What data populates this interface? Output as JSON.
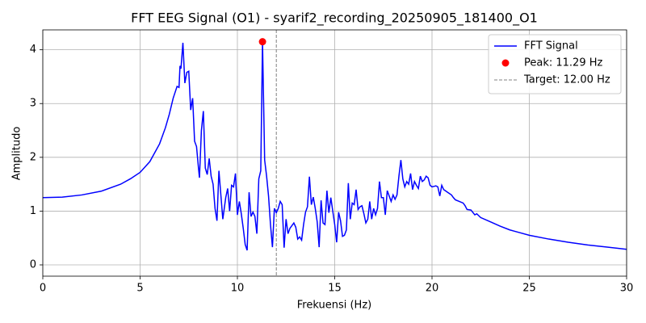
{
  "chart_data": {
    "type": "line",
    "title": "FFT EEG Signal (O1) - syarif2_recording_20250905_181400_O1",
    "x_label": "Frekuensi (Hz)",
    "y_label": "Amplitudo",
    "xlim": [
      0,
      30
    ],
    "ylim": [
      -0.21,
      4.37
    ],
    "xticks": [
      0,
      5,
      10,
      15,
      20,
      25,
      30
    ],
    "yticks": [
      0,
      1,
      2,
      3,
      4
    ],
    "grid": true,
    "legend": "upper right",
    "series": [
      {
        "name": "FFT Signal",
        "color": "#0000ff",
        "style": "line",
        "x": [
          0,
          1,
          2,
          3,
          4,
          4.5,
          5,
          5.5,
          6,
          6.3,
          6.5,
          6.7,
          6.9,
          7.0,
          7.05,
          7.1,
          7.2,
          7.3,
          7.4,
          7.5,
          7.6,
          7.7,
          7.8,
          7.9,
          8.0,
          8.05,
          8.15,
          8.25,
          8.35,
          8.45,
          8.55,
          8.65,
          8.75,
          8.85,
          8.95,
          9.05,
          9.15,
          9.25,
          9.4,
          9.5,
          9.6,
          9.7,
          9.8,
          9.9,
          10.0,
          10.1,
          10.2,
          10.3,
          10.4,
          10.5,
          10.6,
          10.7,
          10.8,
          10.9,
          11.0,
          11.1,
          11.2,
          11.29,
          11.4,
          11.5,
          11.6,
          11.7,
          11.8,
          11.9,
          12.0,
          12.1,
          12.2,
          12.3,
          12.4,
          12.5,
          12.6,
          12.7,
          12.8,
          12.9,
          13.0,
          13.1,
          13.2,
          13.3,
          13.4,
          13.5,
          13.6,
          13.7,
          13.8,
          13.9,
          14.0,
          14.1,
          14.2,
          14.3,
          14.4,
          14.5,
          14.6,
          14.7,
          14.8,
          14.9,
          15.0,
          15.1,
          15.2,
          15.3,
          15.4,
          15.5,
          15.6,
          15.7,
          15.8,
          15.9,
          16.0,
          16.1,
          16.2,
          16.3,
          16.4,
          16.5,
          16.6,
          16.7,
          16.8,
          16.9,
          17.0,
          17.1,
          17.2,
          17.3,
          17.4,
          17.5,
          17.6,
          17.7,
          17.8,
          17.9,
          18.0,
          18.1,
          18.2,
          18.3,
          18.4,
          18.5,
          18.6,
          18.7,
          18.8,
          18.9,
          19.0,
          19.1,
          19.2,
          19.3,
          19.4,
          19.5,
          19.6,
          19.7,
          19.8,
          19.9,
          20.0,
          20.2,
          20.3,
          20.4,
          20.5,
          20.6,
          20.8,
          21.0,
          21.1,
          21.2,
          21.4,
          21.6,
          21.7,
          21.8,
          22.0,
          22.2,
          22.3,
          22.5,
          23.0,
          23.5,
          24.0,
          24.5,
          25,
          26,
          27,
          28,
          29,
          30
        ],
        "values": [
          1.25,
          1.26,
          1.3,
          1.37,
          1.5,
          1.6,
          1.72,
          1.92,
          2.25,
          2.55,
          2.8,
          3.1,
          3.32,
          3.3,
          3.7,
          3.65,
          4.13,
          3.38,
          3.58,
          3.6,
          2.88,
          3.1,
          2.3,
          2.2,
          1.8,
          1.62,
          2.5,
          2.86,
          1.8,
          1.68,
          1.98,
          1.65,
          1.5,
          1.05,
          0.82,
          1.75,
          1.3,
          0.85,
          1.25,
          1.42,
          1.0,
          1.48,
          1.45,
          1.7,
          0.93,
          1.18,
          0.95,
          0.68,
          0.38,
          0.27,
          1.35,
          0.9,
          0.98,
          0.9,
          0.58,
          1.6,
          1.75,
          4.15,
          1.95,
          1.65,
          1.28,
          0.75,
          0.33,
          1.05,
          0.97,
          1.05,
          1.18,
          1.12,
          0.32,
          0.85,
          0.58,
          0.68,
          0.73,
          0.78,
          0.7,
          0.48,
          0.52,
          0.46,
          0.75,
          0.98,
          1.08,
          1.64,
          1.12,
          1.26,
          1.05,
          0.8,
          0.33,
          1.2,
          0.78,
          0.75,
          1.38,
          0.97,
          1.25,
          1.0,
          0.75,
          0.42,
          0.98,
          0.82,
          0.53,
          0.55,
          0.65,
          1.52,
          0.85,
          1.15,
          1.12,
          1.4,
          1.03,
          1.08,
          1.1,
          0.95,
          0.78,
          0.85,
          1.18,
          0.85,
          1.05,
          0.93,
          1.05,
          1.55,
          1.25,
          1.25,
          0.93,
          1.38,
          1.28,
          1.18,
          1.3,
          1.22,
          1.3,
          1.65,
          1.95,
          1.6,
          1.45,
          1.55,
          1.5,
          1.7,
          1.4,
          1.55,
          1.48,
          1.42,
          1.65,
          1.55,
          1.58,
          1.65,
          1.62,
          1.48,
          1.45,
          1.47,
          1.45,
          1.28,
          1.48,
          1.4,
          1.35,
          1.3,
          1.25,
          1.21,
          1.18,
          1.15,
          1.1,
          1.03,
          1.02,
          0.93,
          0.95,
          0.88,
          0.8,
          0.72,
          0.65,
          0.6,
          0.55,
          0.48,
          0.42,
          0.37,
          0.33,
          0.29
        ]
      },
      {
        "name": "Peak: 11.29 Hz",
        "color": "#ff0000",
        "style": "point",
        "x": [
          11.29
        ],
        "values": [
          4.15
        ]
      }
    ],
    "vlines": [
      {
        "name": "Target: 12.00 Hz",
        "x": 12,
        "color": "#808080"
      }
    ]
  }
}
